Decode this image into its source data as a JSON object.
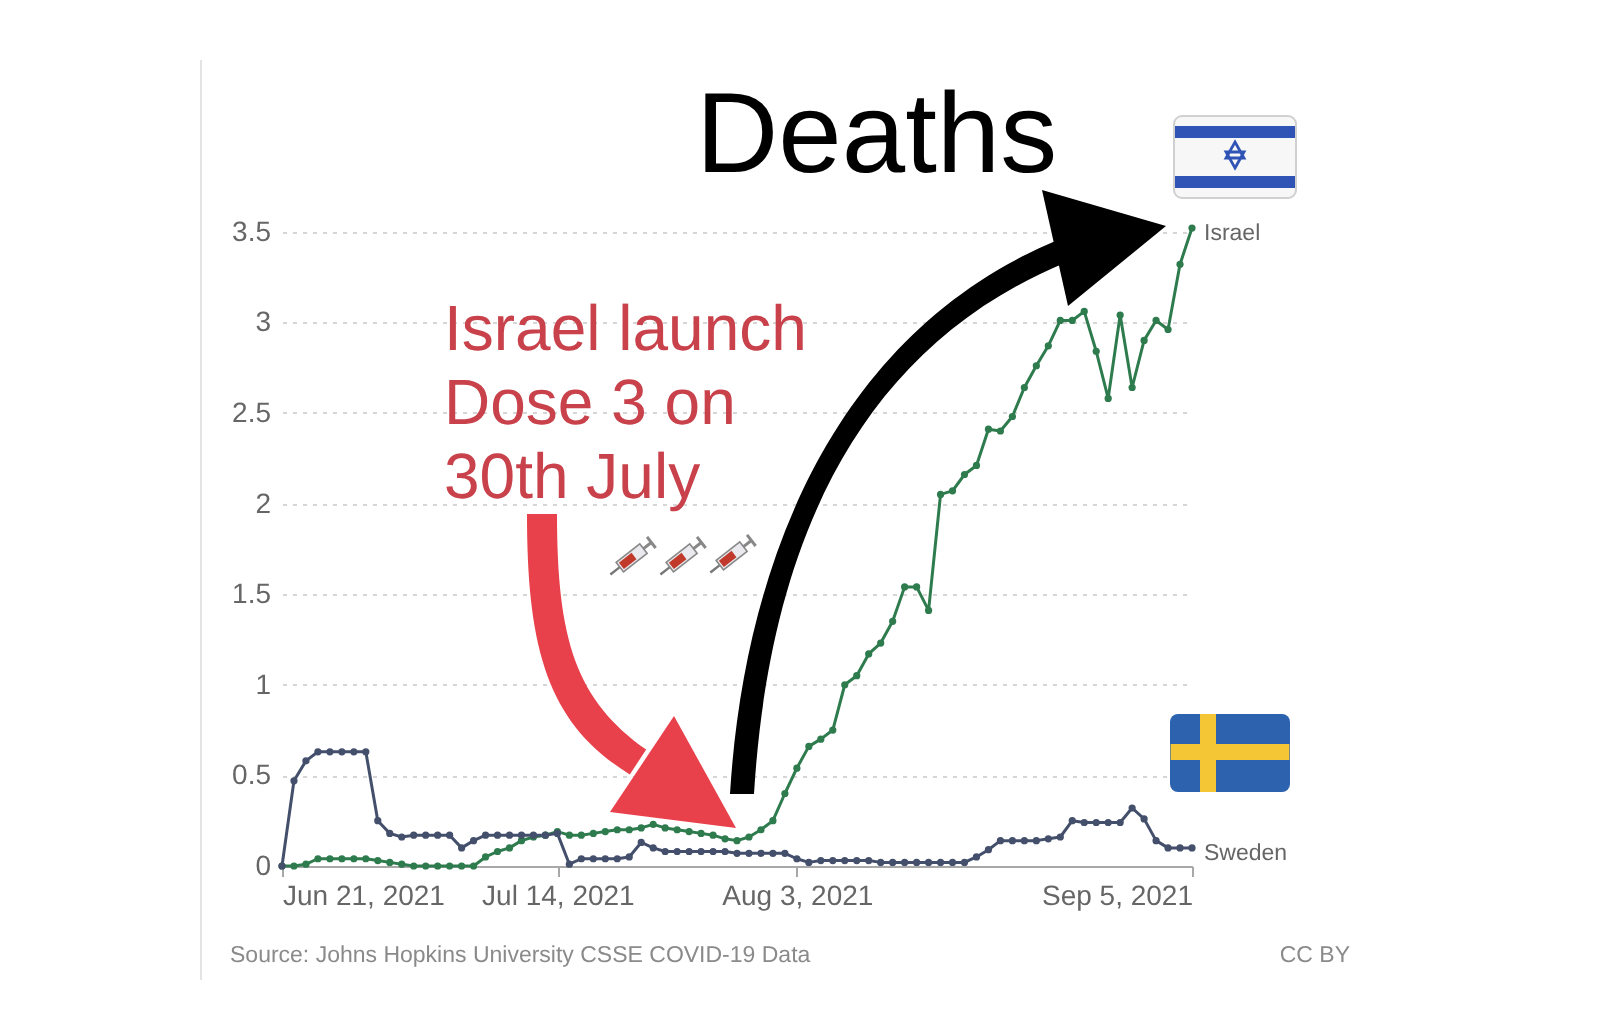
{
  "chart_data": {
    "type": "line",
    "title": "Deaths",
    "x": [
      "2021-06-21",
      "2021-06-22",
      "2021-06-23",
      "2021-06-24",
      "2021-06-25",
      "2021-06-26",
      "2021-06-27",
      "2021-06-28",
      "2021-06-29",
      "2021-06-30",
      "2021-07-01",
      "2021-07-02",
      "2021-07-03",
      "2021-07-04",
      "2021-07-05",
      "2021-07-06",
      "2021-07-07",
      "2021-07-08",
      "2021-07-09",
      "2021-07-10",
      "2021-07-11",
      "2021-07-12",
      "2021-07-13",
      "2021-07-14",
      "2021-07-15",
      "2021-07-16",
      "2021-07-17",
      "2021-07-18",
      "2021-07-19",
      "2021-07-20",
      "2021-07-21",
      "2021-07-22",
      "2021-07-23",
      "2021-07-24",
      "2021-07-25",
      "2021-07-26",
      "2021-07-27",
      "2021-07-28",
      "2021-07-29",
      "2021-07-30",
      "2021-07-31",
      "2021-08-01",
      "2021-08-02",
      "2021-08-03",
      "2021-08-04",
      "2021-08-05",
      "2021-08-06",
      "2021-08-07",
      "2021-08-08",
      "2021-08-09",
      "2021-08-10",
      "2021-08-11",
      "2021-08-12",
      "2021-08-13",
      "2021-08-14",
      "2021-08-15",
      "2021-08-16",
      "2021-08-17",
      "2021-08-18",
      "2021-08-19",
      "2021-08-20",
      "2021-08-21",
      "2021-08-22",
      "2021-08-23",
      "2021-08-24",
      "2021-08-25",
      "2021-08-26",
      "2021-08-27",
      "2021-08-28",
      "2021-08-29",
      "2021-08-30",
      "2021-08-31",
      "2021-09-01",
      "2021-09-02",
      "2021-09-03",
      "2021-09-04",
      "2021-09-05"
    ],
    "xlim": [
      "2021-06-21",
      "2021-09-05"
    ],
    "xticks": [
      {
        "value": "2021-06-21",
        "label": "Jun 21, 2021"
      },
      {
        "value": "2021-07-14",
        "label": "Jul 14, 2021"
      },
      {
        "value": "2021-08-03",
        "label": "Aug 3, 2021"
      },
      {
        "value": "2021-09-05",
        "label": "Sep 5, 2021"
      }
    ],
    "ylim": [
      0,
      3.52
    ],
    "yticks": [
      0,
      0.5,
      1,
      1.5,
      2,
      2.5,
      3,
      3.5
    ],
    "grid": "y",
    "legend": false,
    "marker": "circle",
    "line_style": "solid",
    "series": [
      {
        "name": "Israel",
        "color": "#2e7b4e",
        "values": [
          0,
          0,
          0.01,
          0.04,
          0.04,
          0.04,
          0.04,
          0.04,
          0.03,
          0.02,
          0.01,
          0,
          0,
          0,
          0,
          0,
          0,
          0.05,
          0.08,
          0.1,
          0.14,
          0.16,
          0.17,
          0.19,
          0.17,
          0.17,
          0.18,
          0.19,
          0.2,
          0.2,
          0.21,
          0.23,
          0.21,
          0.2,
          0.19,
          0.18,
          0.17,
          0.15,
          0.14,
          0.16,
          0.2,
          0.25,
          0.4,
          0.54,
          0.66,
          0.7,
          0.75,
          1,
          1.05,
          1.17,
          1.23,
          1.35,
          1.54,
          1.54,
          1.41,
          2.05,
          2.07,
          2.16,
          2.21,
          2.41,
          2.4,
          2.48,
          2.64,
          2.76,
          2.87,
          3.01,
          3.01,
          3.06,
          2.84,
          2.58,
          3.04,
          2.64,
          2.9,
          3.01,
          2.96,
          3.32,
          3.52
        ]
      },
      {
        "name": "Sweden",
        "color": "#434f6b",
        "values": [
          0,
          0.47,
          0.58,
          0.63,
          0.63,
          0.63,
          0.63,
          0.63,
          0.25,
          0.18,
          0.16,
          0.17,
          0.17,
          0.17,
          0.17,
          0.1,
          0.14,
          0.17,
          0.17,
          0.17,
          0.17,
          0.17,
          0.17,
          0.18,
          0.01,
          0.04,
          0.04,
          0.04,
          0.04,
          0.05,
          0.13,
          0.1,
          0.08,
          0.08,
          0.08,
          0.08,
          0.08,
          0.08,
          0.07,
          0.07,
          0.07,
          0.07,
          0.07,
          0.04,
          0.02,
          0.03,
          0.03,
          0.03,
          0.03,
          0.03,
          0.02,
          0.02,
          0.02,
          0.02,
          0.02,
          0.02,
          0.02,
          0.02,
          0.05,
          0.09,
          0.14,
          0.14,
          0.14,
          0.14,
          0.15,
          0.16,
          0.25,
          0.24,
          0.24,
          0.24,
          0.24,
          0.32,
          0.26,
          0.14,
          0.1,
          0.1,
          0.1
        ]
      }
    ],
    "annotations": [
      "Israel launch\nDose 3 on\n30th July",
      "Source: Johns Hopkins University CSSE COVID-19 Data",
      "CC BY"
    ]
  }
}
